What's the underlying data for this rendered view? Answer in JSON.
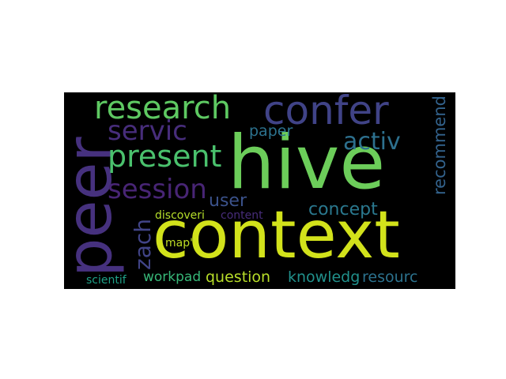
{
  "word_cloud": {
    "background": "#000000",
    "words": [
      {
        "text": "hive",
        "color": "#6ccd5a"
      },
      {
        "text": "context",
        "color": "#d2e21b"
      },
      {
        "text": "peer",
        "color": "#46317e"
      },
      {
        "text": "confer",
        "color": "#404387"
      },
      {
        "text": "research",
        "color": "#5ec962"
      },
      {
        "text": "present",
        "color": "#4ac16d"
      },
      {
        "text": "servic",
        "color": "#472d7b"
      },
      {
        "text": "session",
        "color": "#482575"
      },
      {
        "text": "activ",
        "color": "#2d708e"
      },
      {
        "text": "recommend",
        "color": "#33638d"
      },
      {
        "text": "paper",
        "color": "#2c728e"
      },
      {
        "text": "user",
        "color": "#3b528b"
      },
      {
        "text": "concept",
        "color": "#2a788e"
      },
      {
        "text": "zach",
        "color": "#414487"
      },
      {
        "text": "discoveri",
        "color": "#b5de2b"
      },
      {
        "text": "content",
        "color": "#472c7a"
      },
      {
        "text": "map\"",
        "color": "#c0df25"
      },
      {
        "text": "scientif",
        "color": "#1fa187"
      },
      {
        "text": "workpad",
        "color": "#37b878"
      },
      {
        "text": "question",
        "color": "#b8de29"
      },
      {
        "text": "knowledg",
        "color": "#21918c"
      },
      {
        "text": "resourc",
        "color": "#2c728e"
      }
    ]
  }
}
